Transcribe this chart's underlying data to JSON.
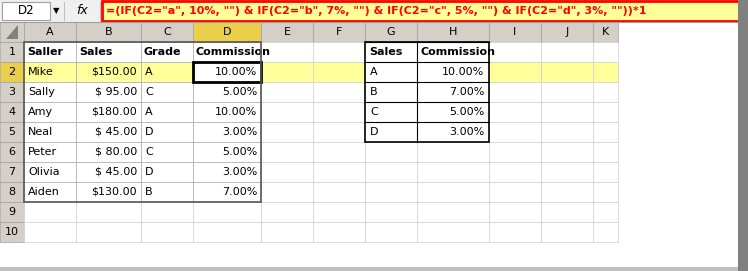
{
  "formula_bar_cell": "D2",
  "formula_text": "=(IF(C2=\"a\", 10%, \"\") & IF(C2=\"b\", 7%, \"\") & IF(C2=\"c\", 5%, \"\") & IF(C2=\"d\", 3%, \"\"))*1",
  "main_table": {
    "headers": [
      "Saller",
      "Sales",
      "Grade",
      "Commission"
    ],
    "rows": [
      [
        "Mike",
        "$150.00",
        "A",
        "10.00%"
      ],
      [
        "Sally",
        "$ 95.00",
        "C",
        "5.00%"
      ],
      [
        "Amy",
        "$180.00",
        "A",
        "10.00%"
      ],
      [
        "Neal",
        "$ 45.00",
        "D",
        "3.00%"
      ],
      [
        "Peter",
        "$ 80.00",
        "C",
        "5.00%"
      ],
      [
        "Olivia",
        "$ 45.00",
        "D",
        "3.00%"
      ],
      [
        "Aiden",
        "$130.00",
        "B",
        "7.00%"
      ]
    ]
  },
  "lookup_table": {
    "headers": [
      "Sales",
      "Commission"
    ],
    "rows": [
      [
        "A",
        "10.00%"
      ],
      [
        "B",
        "7.00%"
      ],
      [
        "C",
        "5.00%"
      ],
      [
        "D",
        "3.00%"
      ]
    ]
  },
  "colors": {
    "col_header_bg": "#d4d0c8",
    "selected_col_header_bg": "#ebcf4a",
    "selected_row_header_bg": "#ebcf4a",
    "formula_bar_border": "#ff0000",
    "formula_text_color": "#ff0000",
    "formula_bar_fill": "#ffff99",
    "selected_row_bg": "#ffff99",
    "active_cell_bg": "#ffffff",
    "outer_bg": "#808080",
    "window_bg": "#ffffff",
    "grid_color": "#d0d0d0",
    "border_color": "#808080"
  },
  "col_letters": [
    "A",
    "B",
    "C",
    "D",
    "E",
    "F",
    "G",
    "H",
    "I",
    "J",
    "K"
  ],
  "n_rows_visible": 10,
  "selected_col": "D",
  "selected_row": 2,
  "active_cell": "D2"
}
